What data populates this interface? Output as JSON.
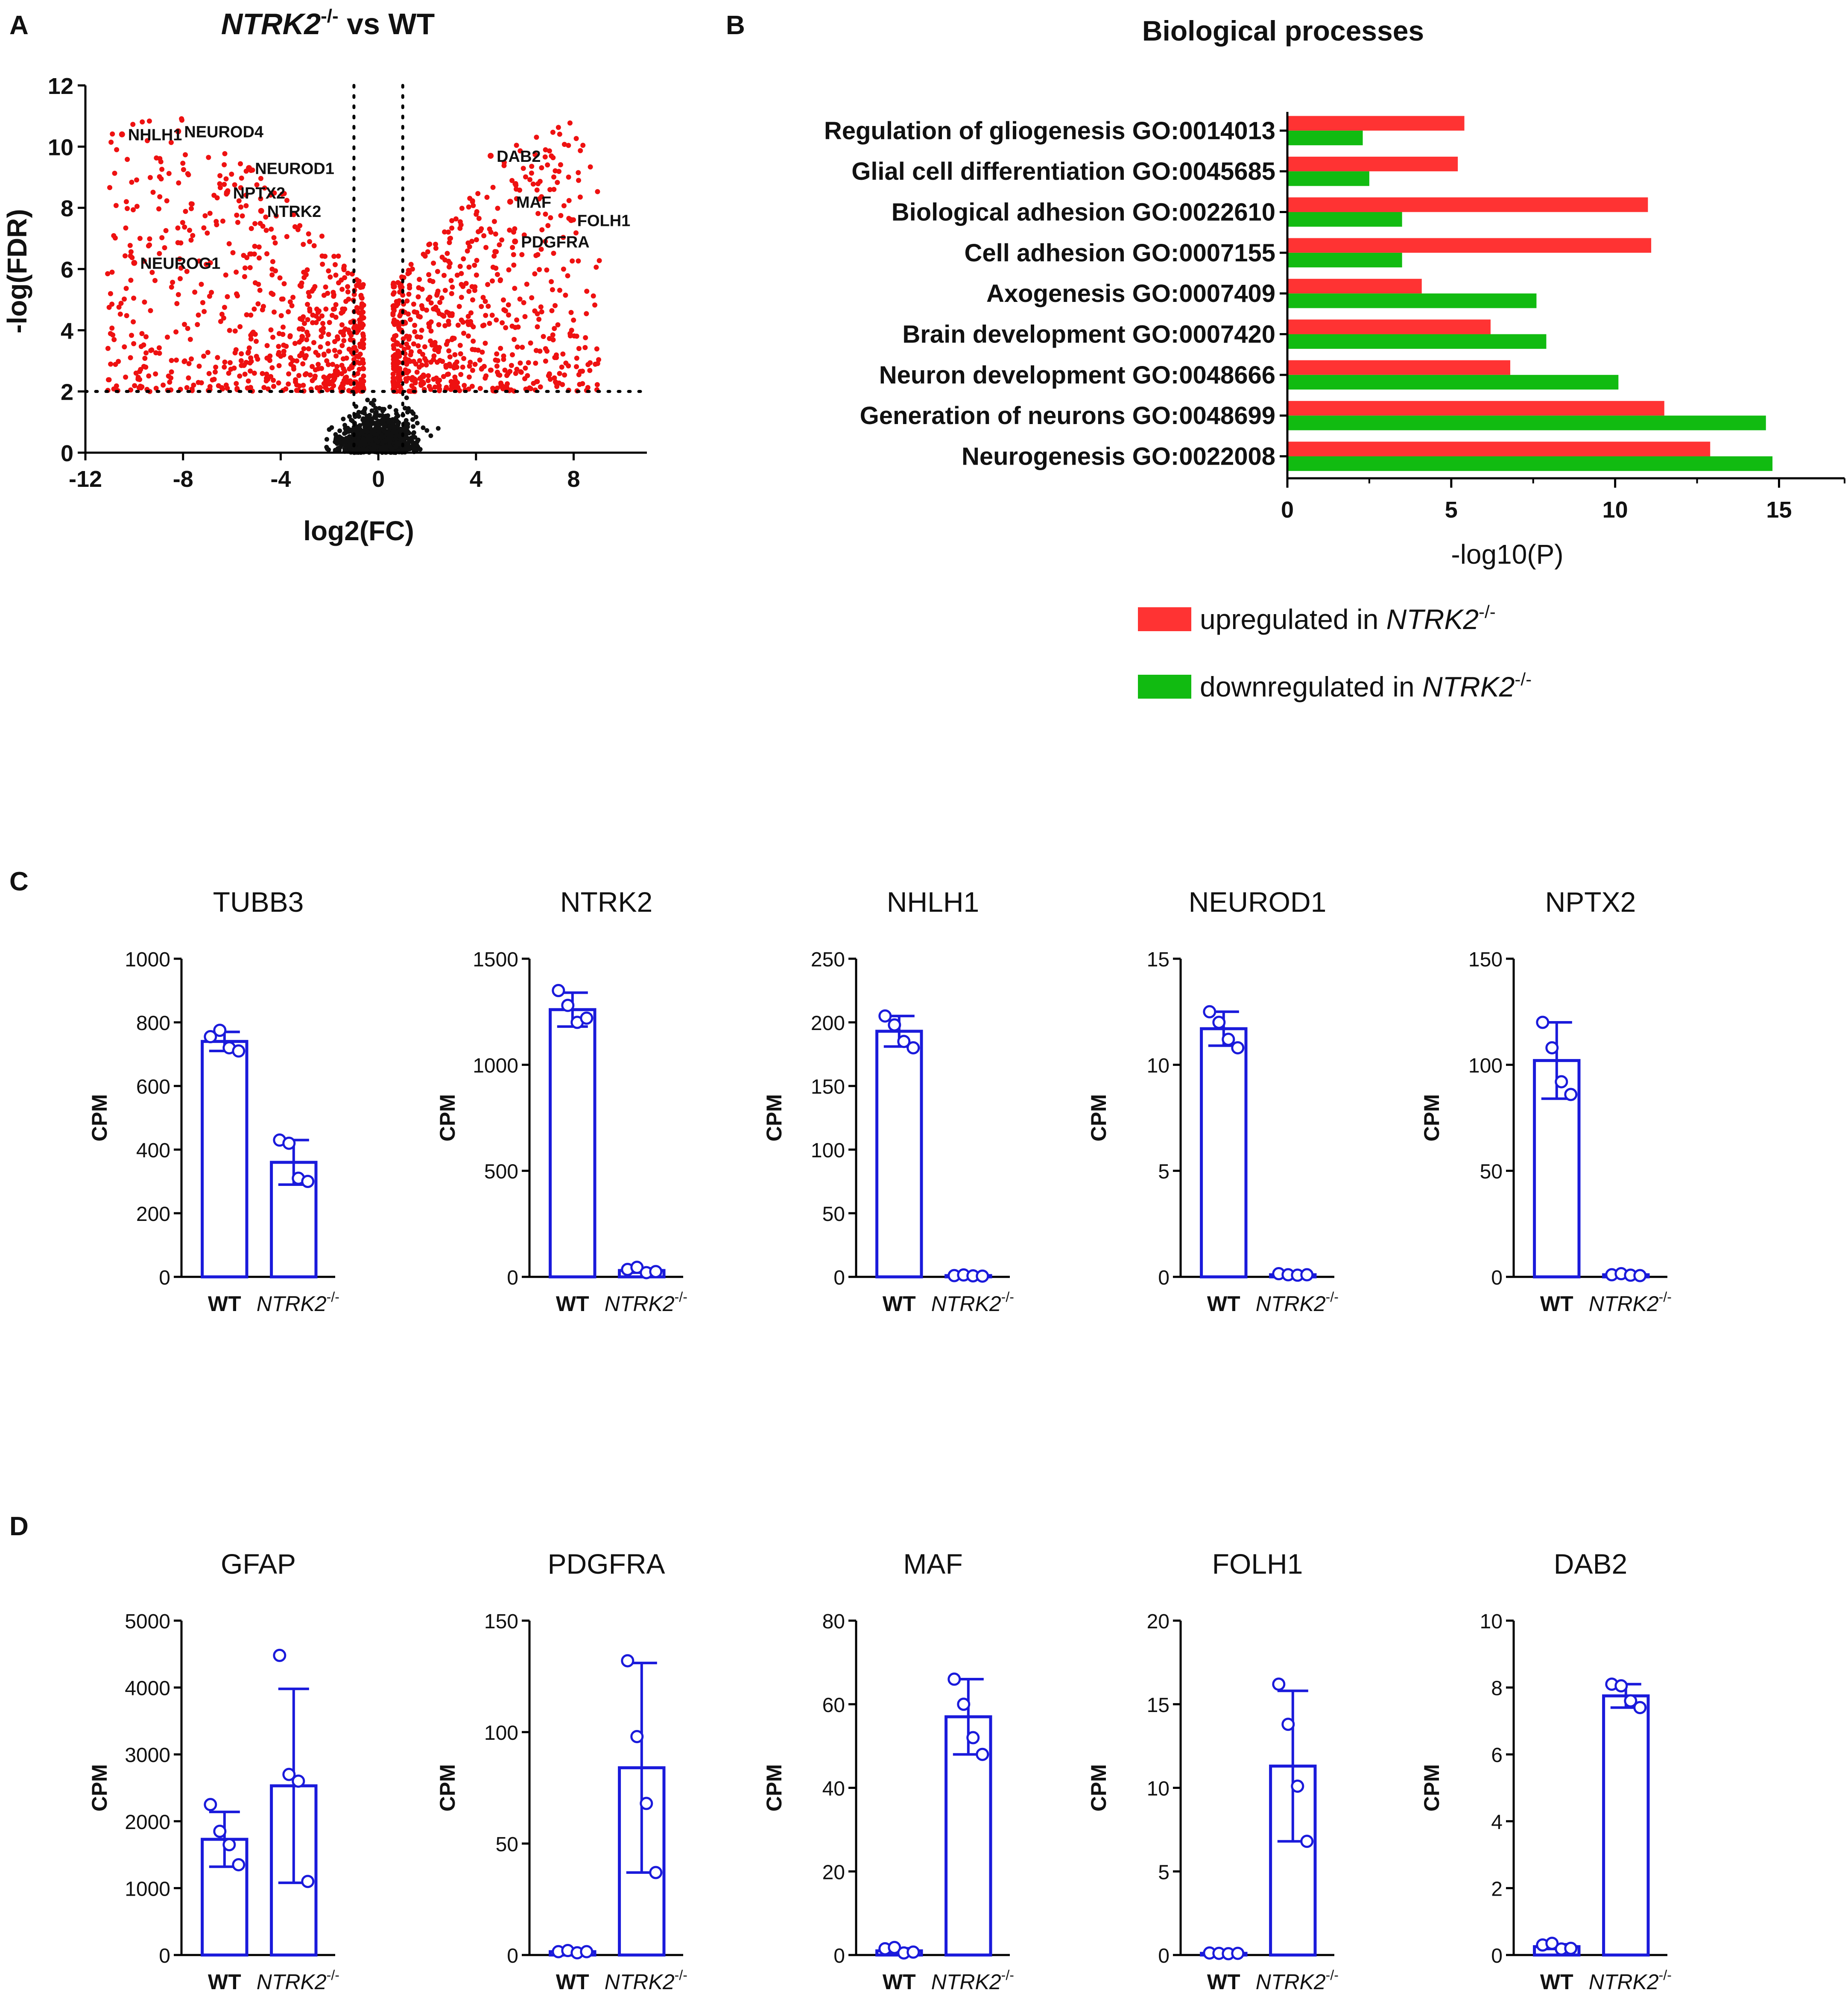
{
  "panel_labels": [
    "A",
    "B",
    "C",
    "D"
  ],
  "colors": {
    "up": "#ff3333",
    "down": "#11bb11",
    "sig_point": "#ee1111",
    "nonsig_point": "#111111",
    "bar": "#1a1adb"
  },
  "chart_data": [
    {
      "id": "A",
      "type": "scatter",
      "title_gene": "NTRK2",
      "title_sup": "-/-",
      "title_rest": " vs WT",
      "xlabel": "log2(FC)",
      "ylabel": "-log(FDR)",
      "xlim": [
        -12,
        11
      ],
      "ylim": [
        0,
        12
      ],
      "xticks": [
        -12,
        -8,
        -4,
        0,
        4,
        8
      ],
      "xtick_labels": [
        "-12",
        "-8",
        "-4",
        "0",
        "4",
        "8"
      ],
      "yticks": [
        0,
        2,
        4,
        6,
        8,
        10,
        12
      ],
      "ytick_labels": [
        "0",
        "2",
        "4",
        "6",
        "8",
        "10",
        "12"
      ],
      "fdr_threshold": 2,
      "fc_thresholds": [
        -1,
        1
      ],
      "labeled_genes": [
        {
          "gene": "NHLH1",
          "x": -10.5,
          "y": 10.4
        },
        {
          "gene": "NEUROD4",
          "x": -8.2,
          "y": 10.5
        },
        {
          "gene": "NEUROD1",
          "x": -5.3,
          "y": 9.3
        },
        {
          "gene": "NPTX2",
          "x": -6.2,
          "y": 8.5
        },
        {
          "gene": "NTRK2",
          "x": -4.8,
          "y": 7.9
        },
        {
          "gene": "NEUROG1",
          "x": -10.0,
          "y": 6.2
        },
        {
          "gene": "DAB2",
          "x": 4.6,
          "y": 9.7
        },
        {
          "gene": "MAF",
          "x": 5.4,
          "y": 8.2
        },
        {
          "gene": "FOLH1",
          "x": 7.9,
          "y": 7.6
        },
        {
          "gene": "PDGFRA",
          "x": 5.6,
          "y": 6.9
        }
      ]
    },
    {
      "id": "B",
      "type": "bar",
      "orientation": "horizontal",
      "title": "Biological processes",
      "xlabel": "-log10(P)",
      "xlim": [
        0,
        17
      ],
      "xticks": [
        0,
        5,
        10,
        15
      ],
      "xtick_labels": [
        "0",
        "5",
        "10",
        "15"
      ],
      "categories": [
        "Regulation of gliogenesis GO:0014013",
        "Glial cell differentiation GO:0045685",
        "Biological adhesion GO:0022610",
        "Cell adhesion GO:0007155",
        "Axogenesis GO:0007409",
        "Brain development GO:0007420",
        "Neuron development GO:0048666",
        "Generation of neurons GO:0048699",
        "Neurogenesis GO:0022008"
      ],
      "series": [
        {
          "name": "upregulated",
          "values": [
            5.4,
            5.2,
            11.0,
            11.1,
            4.1,
            6.2,
            6.8,
            11.5,
            12.9
          ]
        },
        {
          "name": "downregulated",
          "values": [
            2.3,
            2.5,
            3.5,
            3.5,
            7.6,
            7.9,
            10.1,
            14.6,
            14.8
          ]
        }
      ],
      "legend": [
        {
          "prefix": "upregulated in ",
          "gene": "NTRK2",
          "sup": "-/-",
          "color": "up"
        },
        {
          "prefix": "downregulated in ",
          "gene": "NTRK2",
          "sup": "-/-",
          "color": "down"
        }
      ]
    }
  ],
  "bar_panels": [
    {
      "row": "C",
      "gene": "TUBB3",
      "yticks": [
        0,
        200,
        400,
        600,
        800,
        1000
      ],
      "ymax": 1000,
      "groups": [
        {
          "mean": 740,
          "sd": 30,
          "points": [
            755,
            775,
            720,
            710
          ]
        },
        {
          "mean": 360,
          "sd": 70,
          "points": [
            430,
            420,
            310,
            300
          ]
        }
      ]
    },
    {
      "row": "C",
      "gene": "NTRK2",
      "yticks": [
        0,
        500,
        1000,
        1500
      ],
      "ymax": 1500,
      "groups": [
        {
          "mean": 1260,
          "sd": 80,
          "points": [
            1350,
            1280,
            1200,
            1220
          ]
        },
        {
          "mean": 30,
          "sd": 10,
          "points": [
            35,
            45,
            20,
            25
          ]
        }
      ]
    },
    {
      "row": "C",
      "gene": "NHLH1",
      "yticks": [
        0,
        50,
        100,
        150,
        200,
        250
      ],
      "ymax": 250,
      "groups": [
        {
          "mean": 193,
          "sd": 12,
          "points": [
            205,
            198,
            185,
            180
          ]
        },
        {
          "mean": 1,
          "sd": 0.5,
          "points": [
            1,
            1.5,
            0.8,
            0.6
          ]
        }
      ]
    },
    {
      "row": "C",
      "gene": "NEUROD1",
      "yticks": [
        0,
        5,
        10,
        15
      ],
      "ymax": 15,
      "groups": [
        {
          "mean": 11.7,
          "sd": 0.8,
          "points": [
            12.5,
            12.0,
            11.2,
            10.8
          ]
        },
        {
          "mean": 0.1,
          "sd": 0.05,
          "points": [
            0.15,
            0.1,
            0.08,
            0.1
          ]
        }
      ]
    },
    {
      "row": "C",
      "gene": "NPTX2",
      "yticks": [
        0,
        50,
        100,
        150
      ],
      "ymax": 150,
      "groups": [
        {
          "mean": 102,
          "sd": 18,
          "points": [
            120,
            108,
            92,
            86
          ]
        },
        {
          "mean": 1,
          "sd": 0.5,
          "points": [
            1,
            1.5,
            0.8,
            0.6
          ]
        }
      ]
    },
    {
      "row": "D",
      "gene": "GFAP",
      "yticks": [
        0,
        1000,
        2000,
        3000,
        4000,
        5000
      ],
      "ymax": 5000,
      "groups": [
        {
          "mean": 1730,
          "sd": 410,
          "points": [
            2250,
            1850,
            1650,
            1350
          ]
        },
        {
          "mean": 2530,
          "sd": 1450,
          "points": [
            4480,
            2700,
            2600,
            1100
          ]
        }
      ]
    },
    {
      "row": "D",
      "gene": "PDGFRA",
      "yticks": [
        0,
        50,
        100,
        150
      ],
      "ymax": 150,
      "groups": [
        {
          "mean": 1.5,
          "sd": 0.5,
          "points": [
            1.5,
            2,
            1,
            1.5
          ]
        },
        {
          "mean": 84,
          "sd": 47,
          "points": [
            132,
            98,
            68,
            37
          ]
        }
      ]
    },
    {
      "row": "D",
      "gene": "MAF",
      "yticks": [
        0,
        20,
        40,
        60,
        80
      ],
      "ymax": 80,
      "groups": [
        {
          "mean": 1,
          "sd": 0.6,
          "points": [
            1.5,
            1.8,
            0.5,
            0.7
          ]
        },
        {
          "mean": 57,
          "sd": 9,
          "points": [
            66,
            60,
            52,
            48
          ]
        }
      ]
    },
    {
      "row": "D",
      "gene": "FOLH1",
      "yticks": [
        0,
        5,
        10,
        15,
        20
      ],
      "ymax": 20,
      "groups": [
        {
          "mean": 0.1,
          "sd": 0.05,
          "points": [
            0.12,
            0.1,
            0.08,
            0.1
          ]
        },
        {
          "mean": 11.3,
          "sd": 4.5,
          "points": [
            16.2,
            13.8,
            10.1,
            6.8
          ]
        }
      ]
    },
    {
      "row": "D",
      "gene": "DAB2",
      "yticks": [
        0,
        2,
        4,
        6,
        8,
        10
      ],
      "ymax": 10,
      "groups": [
        {
          "mean": 0.25,
          "sd": 0.07,
          "points": [
            0.3,
            0.35,
            0.18,
            0.2
          ]
        },
        {
          "mean": 7.75,
          "sd": 0.35,
          "points": [
            8.1,
            8.05,
            7.6,
            7.4
          ]
        }
      ]
    }
  ],
  "bar_axes": {
    "ylabel": "CPM",
    "wt_label": "WT",
    "ko_gene": "NTRK2",
    "ko_sup": "-/-"
  }
}
